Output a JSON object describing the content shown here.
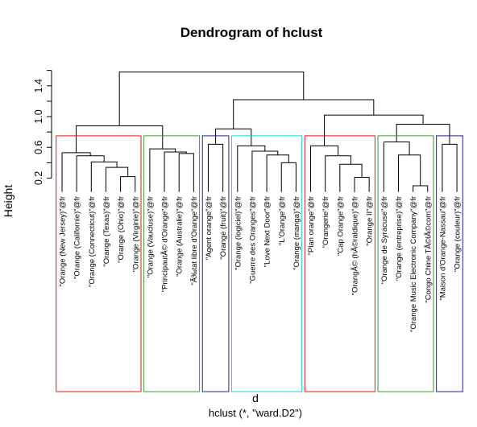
{
  "chart_data": {
    "type": "dendrogram",
    "title": "Dendrogram of hclust",
    "xlabel": "d",
    "subtitle": "hclust (*, \"ward.D2\")",
    "ylabel": "Height",
    "ylim": [
      0,
      1.6
    ],
    "yticks": [
      0.2,
      0.6,
      1.0,
      1.4
    ],
    "ytick_labels": [
      "0.2",
      "0.6",
      "1.0",
      "1.4"
    ],
    "leaves": [
      "\"Orange (New Jersey)\"@fr",
      "\"Orange (Californie)\"@fr",
      "\"Orange (Connecticut)\"@fr",
      "\"Orange (Texas)\"@fr",
      "\"Orange (Ohio)\"@fr",
      "\"Orange (Virginie)\"@fr",
      "\"Orange (Vaucluse)\"@fr",
      "\"PrincipautÃ© d'Orange\"@fr",
      "\"Orange (Australie)\"@fr",
      "\"Ã‰tat libre d'Orange\"@fr",
      "\"Agent orange\"@fr",
      "\"Orange (fruit)\"@fr",
      "\"Orange (logiciel)\"@fr",
      "\"Guerre des Oranges\"@fr",
      "\"Love Next Door\"@fr",
      "\"L'Orange\"@fr",
      "\"Orange (manga)\"@fr",
      "\"Plan orange\"@fr",
      "\"Orangerie\"@fr",
      "\"Cap Orange\"@fr",
      "\"OrangÃ© (hÃ©raldique)\"@fr",
      "\"Orange II\"@fr",
      "\"Orange de Syracuse\"@fr",
      "\"Orange (entreprise)\"@fr",
      "\"Orange Music Electronic Company\"@fr",
      "\"Congo Chine TÃ©lÃ©com\"@fr",
      "\"Maison d'Orange-Nassau\"@fr",
      "\"Orange (couleur)\"@fr"
    ],
    "merges": [
      {
        "a": 4,
        "b": 5,
        "height": 0.22
      },
      {
        "a": 3,
        "b": "c0",
        "height": 0.34
      },
      {
        "a": 2,
        "b": "c1",
        "height": 0.41
      },
      {
        "a": 1,
        "b": "c2",
        "height": 0.49
      },
      {
        "a": 0,
        "b": "c3",
        "height": 0.53
      },
      {
        "a": 8,
        "b": 9,
        "height": 0.52
      },
      {
        "a": 7,
        "b": "c5",
        "height": 0.54
      },
      {
        "a": 6,
        "b": "c6",
        "height": 0.58
      },
      {
        "a": "c4",
        "b": "c7",
        "height": 0.88
      },
      {
        "a": 10,
        "b": 11,
        "height": 0.64
      },
      {
        "a": 15,
        "b": 16,
        "height": 0.4
      },
      {
        "a": 14,
        "b": "c10",
        "height": 0.5
      },
      {
        "a": 13,
        "b": "c11",
        "height": 0.55
      },
      {
        "a": 12,
        "b": "c12",
        "height": 0.62
      },
      {
        "a": "c9",
        "b": "c13",
        "height": 0.84
      },
      {
        "a": 20,
        "b": 21,
        "height": 0.21
      },
      {
        "a": 19,
        "b": "c15",
        "height": 0.38
      },
      {
        "a": 18,
        "b": "c16",
        "height": 0.49
      },
      {
        "a": 17,
        "b": "c17",
        "height": 0.62
      },
      {
        "a": 24,
        "b": 25,
        "height": 0.1
      },
      {
        "a": 23,
        "b": "c19",
        "height": 0.5
      },
      {
        "a": 22,
        "b": "c20",
        "height": 0.67
      },
      {
        "a": 26,
        "b": 27,
        "height": 0.64
      },
      {
        "a": "c21",
        "b": "c22",
        "height": 0.9
      },
      {
        "a": "c18",
        "b": "c23",
        "height": 1.02
      },
      {
        "a": "c14",
        "b": "c24",
        "height": 1.22
      },
      {
        "a": "c8",
        "b": "c25",
        "height": 1.58
      }
    ],
    "cluster_boxes": [
      {
        "from": 0,
        "to": 5,
        "color": "#e31a1c"
      },
      {
        "from": 6,
        "to": 9,
        "color": "#2ca02c"
      },
      {
        "from": 10,
        "to": 11,
        "color": "#1f1fa8"
      },
      {
        "from": 12,
        "to": 16,
        "color": "#17d4e0"
      },
      {
        "from": 17,
        "to": 21,
        "color": "#e31a1c"
      },
      {
        "from": 22,
        "to": 25,
        "color": "#2ca02c"
      },
      {
        "from": 26,
        "to": 27,
        "color": "#1f1fa8"
      }
    ],
    "grid": false,
    "legend": "none"
  }
}
